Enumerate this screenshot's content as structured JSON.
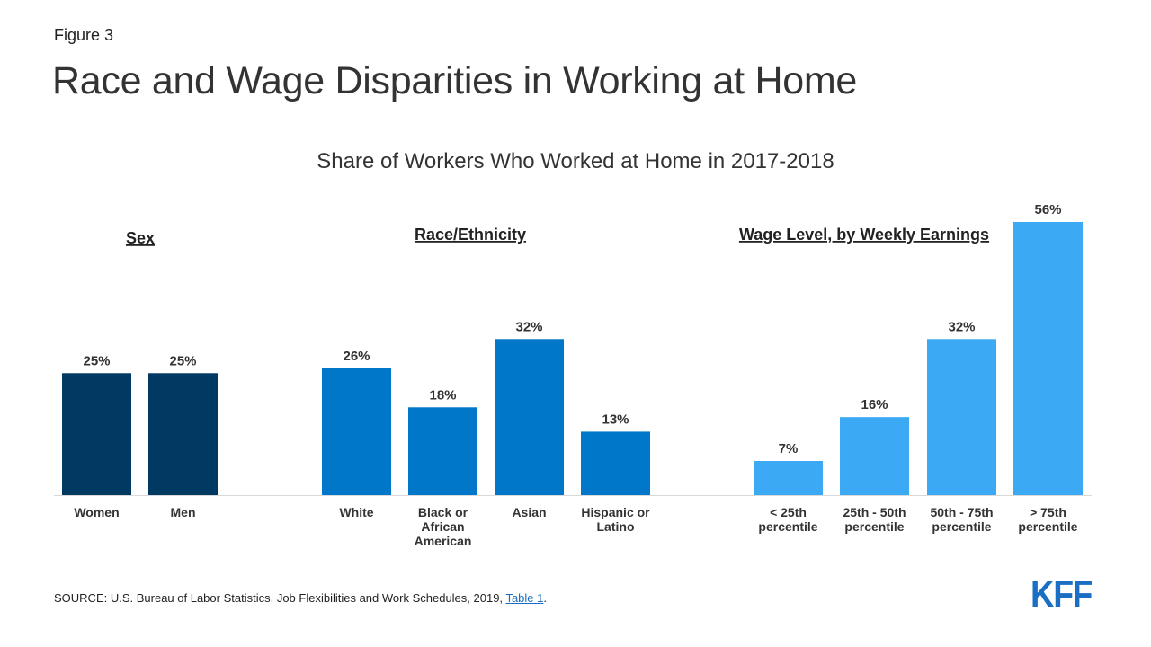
{
  "figure_label": "Figure 3",
  "title": "Race and Wage Disparities in Working at Home",
  "source": {
    "prefix": "SOURCE:  U.S. Bureau of Labor Statistics, Job Flexibilities and Work Schedules, 2019, ",
    "link_text": "Table 1",
    "suffix": "."
  },
  "logo_text": "KFF",
  "chart_data": {
    "type": "bar",
    "title": "Share of Workers Who Worked at Home in 2017-2018",
    "xlabel": "",
    "ylabel": "",
    "ylim": [
      0,
      56
    ],
    "unit": "%",
    "grid": false,
    "groups": [
      {
        "name": "Sex",
        "color": "#003a63",
        "categories": [
          [
            "Women"
          ],
          [
            "Men"
          ]
        ],
        "values": [
          25,
          25
        ]
      },
      {
        "name": "Race/Ethnicity",
        "color": "#0077c8",
        "categories": [
          [
            "White"
          ],
          [
            "Black or",
            "African",
            "American"
          ],
          [
            "Asian"
          ],
          [
            "Hispanic or",
            "Latino"
          ]
        ],
        "values": [
          26,
          18,
          32,
          13
        ]
      },
      {
        "name": "Wage Level, by Weekly Earnings",
        "color": "#3ca9f5",
        "categories": [
          [
            "< 25th",
            "percentile"
          ],
          [
            "25th - 50th",
            "percentile"
          ],
          [
            "50th - 75th",
            "percentile"
          ],
          [
            "> 75th",
            "percentile"
          ]
        ],
        "values": [
          7,
          16,
          32,
          56
        ]
      }
    ]
  }
}
